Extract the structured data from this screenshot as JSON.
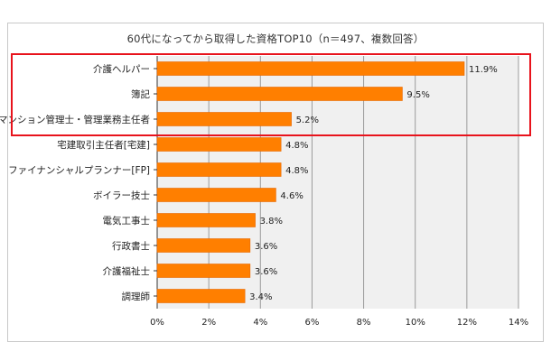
{
  "chart_data": {
    "type": "bar",
    "orientation": "horizontal",
    "title": "60代になってから取得した資格TOP10（n＝497、複数回答）",
    "categories": [
      "介護ヘルパー",
      "簿記",
      "マンション管理士・管理業務主任者",
      "宅建取引主任者[宅建]",
      "ファイナンシャルプランナー[FP]",
      "ボイラー技士",
      "電気工事士",
      "行政書士",
      "介護福祉士",
      "調理師"
    ],
    "values": [
      11.9,
      9.5,
      5.2,
      4.8,
      4.8,
      4.6,
      3.8,
      3.6,
      3.6,
      3.4
    ],
    "value_labels": [
      "11.9%",
      "9.5%",
      "5.2%",
      "4.8%",
      "4.8%",
      "4.6%",
      "3.8%",
      "3.6%",
      "3.6%",
      "3.4%"
    ],
    "xlim": [
      0,
      14
    ],
    "xticks": [
      0,
      2,
      4,
      6,
      8,
      10,
      12,
      14
    ],
    "xtick_labels": [
      "0%",
      "2%",
      "4%",
      "6%",
      "8%",
      "10%",
      "12%",
      "14%"
    ],
    "highlighted_count": 3,
    "grid": true,
    "xlabel": "",
    "ylabel": ""
  },
  "colors": {
    "bar": "#ff7f00",
    "bar_edge": "#e86800",
    "highlight_box": "#e8131c",
    "plot_background": "#f0f0f0",
    "gridline": "#9a9a9a"
  }
}
